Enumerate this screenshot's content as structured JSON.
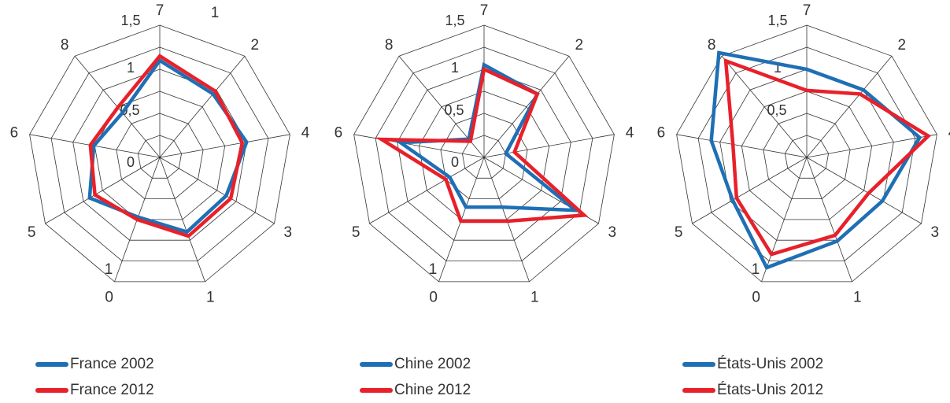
{
  "colors": {
    "series_2002": "#1f6fb5",
    "series_2012": "#e8202a",
    "grid": "#333333"
  },
  "chart_data": [
    {
      "type": "radar",
      "axes": [
        "7",
        "2",
        "4",
        "3",
        "1",
        "0",
        "5",
        "6",
        "8"
      ],
      "outer_labels": [
        "7",
        "2",
        "4",
        "3",
        "1",
        "0",
        "5",
        "6",
        "8"
      ],
      "inner_labels": [
        "1",
        "1"
      ],
      "scale_labels": [
        "1,5",
        "1",
        "0,5",
        "0"
      ],
      "rlim": [
        0,
        1.5
      ],
      "grid_levels": [
        0.25,
        0.5,
        0.75,
        1.0,
        1.25,
        1.5
      ],
      "series": [
        {
          "name": "France 2002",
          "values": [
            1.1,
            0.94,
            1.0,
            0.87,
            0.9,
            0.72,
            0.92,
            0.76,
            0.66
          ]
        },
        {
          "name": "France 2012",
          "values": [
            1.15,
            0.98,
            0.95,
            0.93,
            0.95,
            0.75,
            0.85,
            0.8,
            0.74
          ]
        }
      ],
      "legend": [
        "France 2002",
        "France 2012"
      ]
    },
    {
      "type": "radar",
      "axes": [
        "7",
        "2",
        "4",
        "3",
        "1",
        "0",
        "5",
        "6",
        "8"
      ],
      "outer_labels": [
        "7",
        "2",
        "4",
        "3",
        "1",
        "0",
        "5",
        "6",
        "8"
      ],
      "inner_labels": [
        "1"
      ],
      "scale_labels": [
        "1,5",
        "1",
        "0,5",
        "0"
      ],
      "rlim": [
        0,
        1.5
      ],
      "grid_levels": [
        0.25,
        0.5,
        0.75,
        1.0,
        1.25,
        1.5
      ],
      "series": [
        {
          "name": "Chine 2002",
          "values": [
            1.05,
            0.94,
            0.25,
            1.2,
            0.6,
            0.6,
            0.45,
            0.96,
            0.27
          ]
        },
        {
          "name": "Chine 2012",
          "values": [
            1.0,
            0.94,
            0.35,
            1.31,
            0.77,
            0.77,
            0.5,
            1.18,
            0.24
          ]
        }
      ],
      "legend": [
        "Chine 2002",
        "Chine 2012"
      ]
    },
    {
      "type": "radar",
      "axes": [
        "7",
        "2",
        "4",
        "3",
        "1",
        "0",
        "5",
        "6",
        "8"
      ],
      "outer_labels": [
        "7",
        "2",
        "4",
        "3",
        "1",
        "0",
        "5",
        "6",
        "8"
      ],
      "inner_labels": [
        "1"
      ],
      "scale_labels": [
        "1,5",
        "1",
        "0,5"
      ],
      "rlim": [
        0,
        1.5
      ],
      "grid_levels": [
        0.25,
        0.5,
        0.75,
        1.0,
        1.25,
        1.5
      ],
      "series": [
        {
          "name": "États-Unis 2002",
          "values": [
            1.0,
            1.0,
            1.3,
            0.99,
            1.01,
            1.33,
            0.97,
            1.1,
            1.55
          ]
        },
        {
          "name": "États-Unis 2012",
          "values": [
            0.76,
            0.94,
            1.4,
            0.81,
            0.94,
            1.17,
            0.92,
            0.85,
            1.43
          ]
        }
      ],
      "legend": [
        "États-Unis 2002",
        "États-Unis 2012"
      ]
    }
  ]
}
